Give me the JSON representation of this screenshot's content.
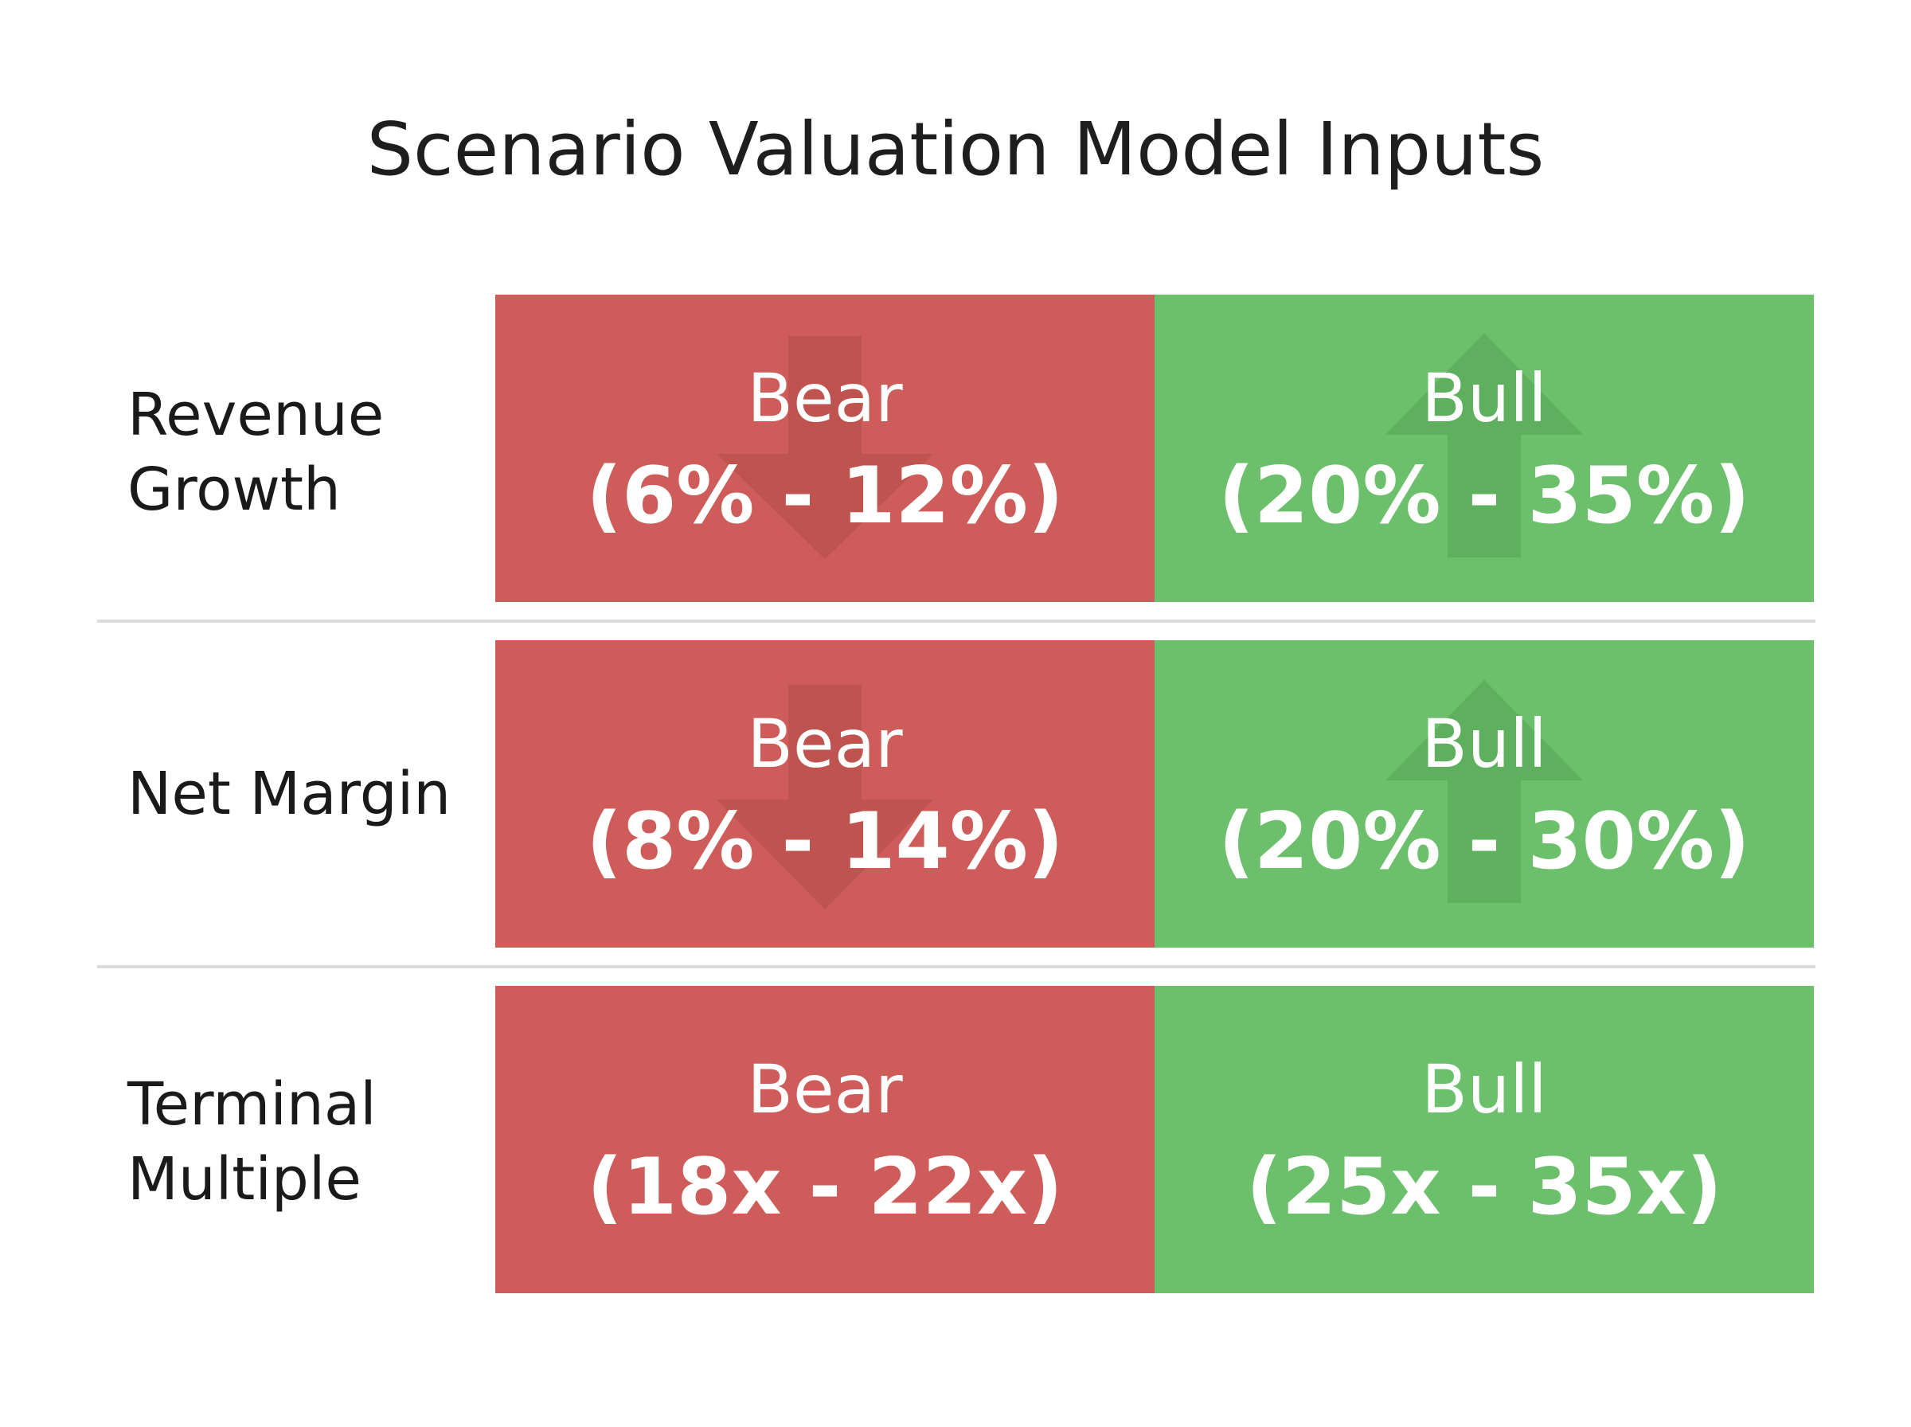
{
  "title": "Scenario Valuation Model Inputs",
  "colors": {
    "bear": "#cd5c5a",
    "bull": "#6cbf6b",
    "bear_arrow": "#b8504e",
    "bull_arrow": "#5aa95a",
    "divider": "#dcdcdc"
  },
  "rows": [
    {
      "label_line1": "Revenue",
      "label_line2": "Growth",
      "bear": {
        "label": "Bear",
        "range": "(6% - 12%)",
        "icon": "down-arrow-icon"
      },
      "bull": {
        "label": "Bull",
        "range": "(20% - 35%)",
        "icon": "up-arrow-icon"
      }
    },
    {
      "label_line1": "Net Margin",
      "label_line2": "",
      "bear": {
        "label": "Bear",
        "range": "(8% - 14%)",
        "icon": "down-arrow-icon"
      },
      "bull": {
        "label": "Bull",
        "range": "(20% - 30%)",
        "icon": "up-arrow-icon"
      }
    },
    {
      "label_line1": "Terminal",
      "label_line2": "Multiple",
      "bear": {
        "label": "Bear",
        "range": "(18x - 22x)"
      },
      "bull": {
        "label": "Bull",
        "range": "(25x - 35x)"
      }
    }
  ]
}
